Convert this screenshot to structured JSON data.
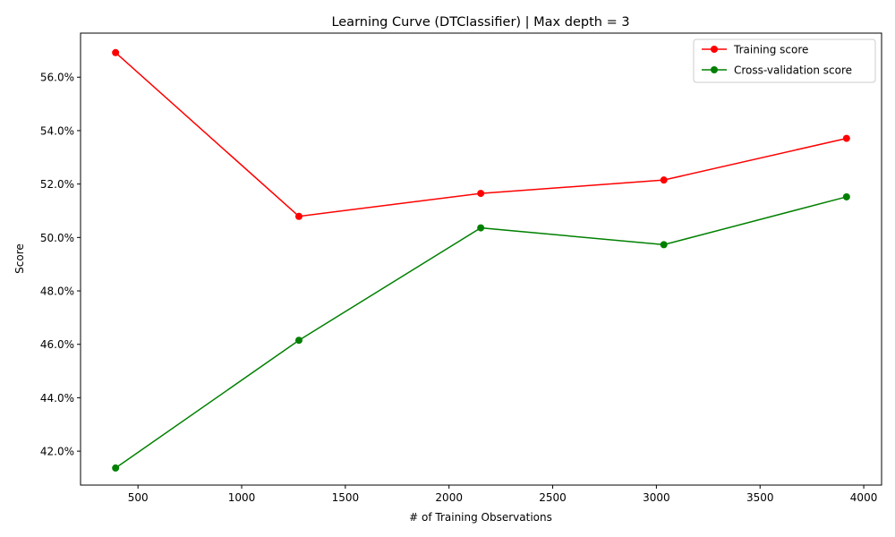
{
  "chart_data": {
    "type": "line",
    "title": "Learning Curve (DTClassifier) | Max depth = 3",
    "xlabel": "# of Training Observations",
    "ylabel": "Score",
    "x": [
      392,
      1276,
      2153,
      3036,
      3917
    ],
    "xlim": [
      223,
      4086
    ],
    "ylim": [
      0.4073,
      0.5765
    ],
    "x_ticks": [
      500,
      1000,
      1500,
      2000,
      2500,
      3000,
      3500,
      4000
    ],
    "x_tick_labels": [
      "500",
      "1000",
      "1500",
      "2000",
      "2500",
      "3000",
      "3500",
      "4000"
    ],
    "y_ticks": [
      0.42,
      0.44,
      0.46,
      0.48,
      0.5,
      0.52,
      0.54,
      0.56
    ],
    "y_tick_labels": [
      "42.0%",
      "44.0%",
      "46.0%",
      "48.0%",
      "50.0%",
      "52.0%",
      "54.0%",
      "56.0%"
    ],
    "grid": false,
    "legend_position": "top-right",
    "series": [
      {
        "name": "Training score",
        "color": "#ff0000",
        "marker": "circle",
        "values": [
          0.5692,
          0.5079,
          0.5165,
          0.5215,
          0.5371
        ]
      },
      {
        "name": "Cross-validation score",
        "color": "#008000",
        "marker": "circle",
        "values": [
          0.4137,
          0.4615,
          0.5036,
          0.4973,
          0.5152
        ]
      }
    ]
  }
}
